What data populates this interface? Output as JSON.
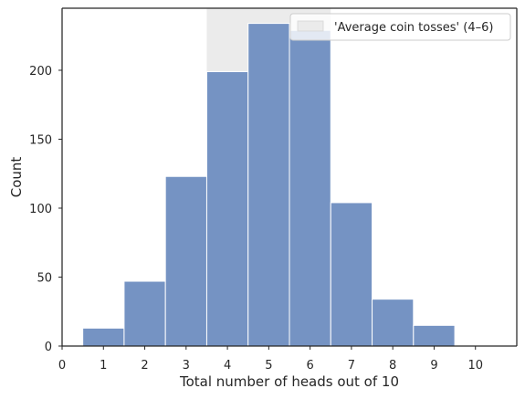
{
  "chart_data": {
    "type": "bar",
    "xlabel": "Total number of heads out of 10",
    "ylabel": "Count",
    "x_ticks": [
      "0",
      "1",
      "2",
      "3",
      "4",
      "5",
      "6",
      "7",
      "8",
      "9",
      "10"
    ],
    "y_ticks": [
      "0",
      "50",
      "100",
      "150",
      "200"
    ],
    "xlim": [
      0,
      11
    ],
    "ylim": [
      0,
      245
    ],
    "bins": [
      {
        "x": 1,
        "value": 13
      },
      {
        "x": 2,
        "value": 47
      },
      {
        "x": 3,
        "value": 123
      },
      {
        "x": 4,
        "value": 199
      },
      {
        "x": 5,
        "value": 234
      },
      {
        "x": 6,
        "value": 229
      },
      {
        "x": 7,
        "value": 104
      },
      {
        "x": 8,
        "value": 34
      },
      {
        "x": 9,
        "value": 15
      }
    ],
    "bar_width": 1,
    "highlight_span": {
      "x_start": 3.5,
      "x_end": 6.5,
      "label": "'Average coin tosses' (4–6)"
    },
    "legend_position": "upper right",
    "grid": false,
    "colors": {
      "bar": "#7593c3",
      "bar_edge": "#ffffff",
      "span": "#ebebeb",
      "axis": "#262626"
    }
  }
}
